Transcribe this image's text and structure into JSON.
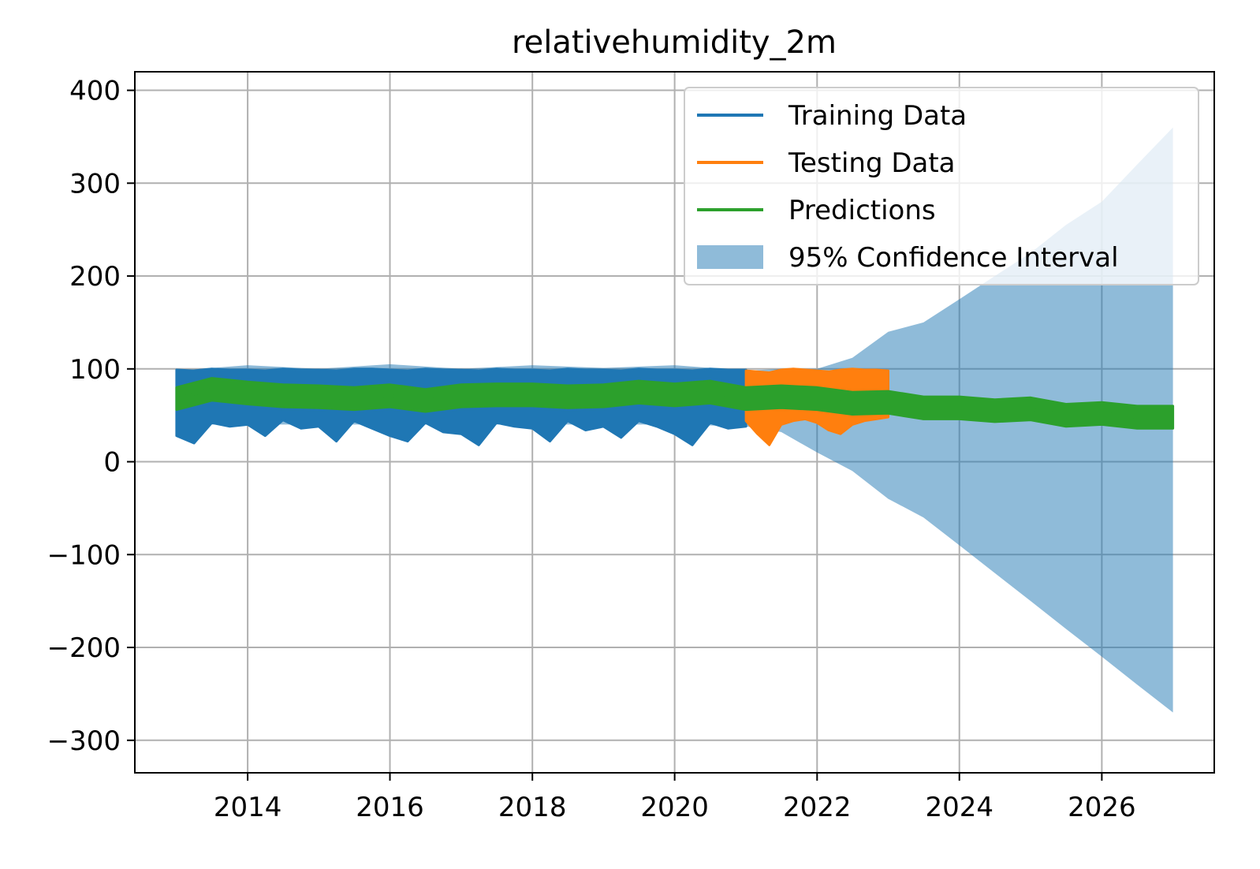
{
  "chart_data": {
    "type": "line",
    "title": "relativehumidity_2m",
    "xlabel": "",
    "ylabel": "",
    "x_axis": "date",
    "xlim": [
      "2012-06-01",
      "2027-08-01"
    ],
    "ylim": [
      -335,
      420
    ],
    "xticks": [
      "2014",
      "2016",
      "2018",
      "2020",
      "2022",
      "2024",
      "2026"
    ],
    "yticks": [
      400,
      300,
      200,
      100,
      0,
      -100,
      -200,
      -300
    ],
    "ytick_labels": [
      "400",
      "300",
      "200",
      "100",
      "0",
      "−100",
      "−200",
      "−300"
    ],
    "grid": true,
    "legend": {
      "position": "top-right",
      "entries": [
        {
          "label": "Training Data",
          "marker": "line",
          "color": "#1f77b4"
        },
        {
          "label": "Testing Data",
          "marker": "line",
          "color": "#ff7f0e"
        },
        {
          "label": "Predictions",
          "marker": "line",
          "color": "#2ca02c"
        },
        {
          "label": "95% Confidence Interval",
          "marker": "patch",
          "color": "#1f77b4",
          "alpha": 0.5
        }
      ]
    },
    "series": [
      {
        "name": "Training Data",
        "color": "#1f77b4",
        "x": [
          "2013-01-01",
          "2013-04-01",
          "2013-07-01",
          "2013-10-01",
          "2014-01-01",
          "2014-04-01",
          "2014-07-01",
          "2014-10-01",
          "2015-01-01",
          "2015-04-01",
          "2015-07-01",
          "2015-10-01",
          "2016-01-01",
          "2016-04-01",
          "2016-07-01",
          "2016-10-01",
          "2017-01-01",
          "2017-04-01",
          "2017-07-01",
          "2017-10-01",
          "2018-01-01",
          "2018-04-01",
          "2018-07-01",
          "2018-10-01",
          "2019-01-01",
          "2019-04-01",
          "2019-07-01",
          "2019-10-01",
          "2020-01-01",
          "2020-04-01",
          "2020-07-01",
          "2020-10-01",
          "2021-01-01"
        ],
        "upper": [
          99,
          98,
          100,
          99,
          99,
          98,
          100,
          99,
          99,
          98,
          100,
          100,
          99,
          98,
          100,
          99,
          99,
          98,
          100,
          99,
          99,
          98,
          100,
          99,
          99,
          98,
          100,
          99,
          99,
          98,
          100,
          99,
          99
        ],
        "lower": [
          28,
          20,
          42,
          38,
          40,
          28,
          45,
          36,
          38,
          22,
          44,
          36,
          28,
          22,
          42,
          32,
          30,
          18,
          42,
          38,
          36,
          22,
          44,
          34,
          38,
          26,
          44,
          38,
          30,
          18,
          42,
          36,
          38
        ]
      },
      {
        "name": "Testing Data",
        "color": "#ff7f0e",
        "x": [
          "2021-01-01",
          "2021-03-01",
          "2021-05-01",
          "2021-07-01",
          "2021-09-01",
          "2021-11-01",
          "2022-01-01",
          "2022-03-01",
          "2022-05-01",
          "2022-07-01",
          "2022-09-01",
          "2022-11-01",
          "2023-01-01"
        ],
        "upper": [
          98,
          97,
          96,
          99,
          100,
          99,
          98,
          97,
          99,
          100,
          99,
          99,
          98
        ],
        "lower": [
          44,
          30,
          18,
          40,
          44,
          46,
          42,
          34,
          30,
          40,
          44,
          46,
          48
        ]
      },
      {
        "name": "Predictions",
        "color": "#2ca02c",
        "x": [
          "2013-01-01",
          "2013-07-01",
          "2014-01-01",
          "2014-07-01",
          "2015-01-01",
          "2015-07-01",
          "2016-01-01",
          "2016-07-01",
          "2017-01-01",
          "2017-07-01",
          "2018-01-01",
          "2018-07-01",
          "2019-01-01",
          "2019-07-01",
          "2020-01-01",
          "2020-07-01",
          "2021-01-01",
          "2021-07-01",
          "2022-01-01",
          "2022-07-01",
          "2023-01-01",
          "2023-07-01",
          "2024-01-01",
          "2024-07-01",
          "2025-01-01",
          "2025-07-01",
          "2026-01-01",
          "2026-07-01",
          "2027-01-01"
        ],
        "values": [
          68,
          78,
          74,
          71,
          70,
          68,
          71,
          66,
          71,
          72,
          72,
          70,
          71,
          75,
          72,
          75,
          68,
          70,
          68,
          63,
          64,
          58,
          58,
          55,
          57,
          50,
          52,
          48,
          48
        ],
        "band": 12
      }
    ],
    "confidence_interval": {
      "name": "95% Confidence Interval",
      "color": "#1f77b4",
      "alpha": 0.5,
      "x": [
        "2013-01-01",
        "2014-01-01",
        "2015-01-01",
        "2016-01-01",
        "2017-01-01",
        "2018-01-01",
        "2019-01-01",
        "2020-01-01",
        "2021-01-01",
        "2021-07-01",
        "2022-01-01",
        "2022-07-01",
        "2023-01-01",
        "2023-07-01",
        "2024-01-01",
        "2024-07-01",
        "2025-01-01",
        "2025-07-01",
        "2026-01-01",
        "2026-07-01",
        "2027-01-01"
      ],
      "upper": [
        98,
        104,
        100,
        105,
        100,
        104,
        101,
        104,
        98,
        100,
        100,
        112,
        140,
        150,
        175,
        200,
        225,
        255,
        280,
        320,
        360
      ],
      "lower": [
        40,
        40,
        40,
        40,
        40,
        40,
        40,
        40,
        38,
        32,
        10,
        -10,
        -40,
        -60,
        -90,
        -120,
        -150,
        -180,
        -210,
        -240,
        -270
      ]
    }
  }
}
